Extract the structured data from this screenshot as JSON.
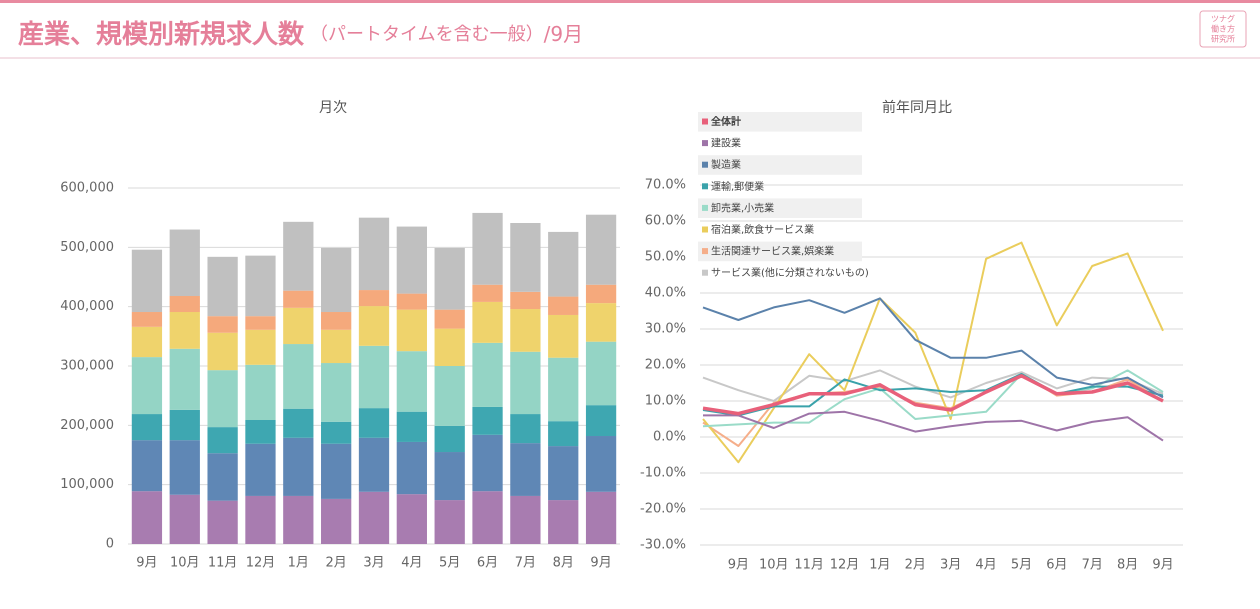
{
  "header": {
    "title": "産業、規模別新規求人数",
    "subtitle": "（パートタイムを含む一般）",
    "suffix": "/9月",
    "logo": [
      "ツナグ",
      "働き方",
      "研究所"
    ]
  },
  "chart_data": [
    {
      "type": "stacked-bar",
      "title": "月次",
      "categories": [
        "9月",
        "10月",
        "11月",
        "12月",
        "1月",
        "2月",
        "3月",
        "4月",
        "5月",
        "6月",
        "7月",
        "8月",
        "9月"
      ],
      "series": [
        {
          "color": "#a87cb0",
          "values": [
            89000,
            83000,
            73000,
            81000,
            81000,
            76000,
            88000,
            84000,
            74000,
            89000,
            81000,
            74000,
            88000
          ]
        },
        {
          "color": "#5f87b5",
          "values": [
            86000,
            92000,
            80000,
            88000,
            98000,
            93000,
            91000,
            88000,
            81000,
            95000,
            89000,
            91000,
            94000
          ]
        },
        {
          "color": "#3ea7b1",
          "values": [
            44000,
            51000,
            44000,
            40000,
            49000,
            37000,
            50000,
            51000,
            44000,
            47000,
            49000,
            42000,
            52000
          ]
        },
        {
          "color": "#94d4c5",
          "values": [
            96000,
            103000,
            96000,
            93000,
            109000,
            99000,
            105000,
            102000,
            101000,
            108000,
            105000,
            107000,
            107000
          ]
        },
        {
          "color": "#efd36c",
          "values": [
            51000,
            62000,
            63000,
            59000,
            61000,
            56000,
            67000,
            70000,
            63000,
            69000,
            72000,
            72000,
            65000
          ]
        },
        {
          "color": "#f5a97c",
          "values": [
            25000,
            27000,
            28000,
            23000,
            29000,
            30000,
            27000,
            27000,
            32000,
            29000,
            29000,
            31000,
            31000
          ]
        },
        {
          "color": "#c0c0c0",
          "values": [
            105000,
            112000,
            100000,
            102000,
            116000,
            108000,
            122000,
            113000,
            104000,
            121000,
            116000,
            109000,
            118000
          ]
        }
      ],
      "ylim": [
        0,
        600000
      ],
      "yticks": [
        0,
        {
          "value": 100000,
          "label": "100,000"
        },
        {
          "value": 200000,
          "label": "200,000"
        },
        {
          "value": 300000,
          "label": "300,000"
        },
        {
          "value": 400000,
          "label": "400,000"
        },
        {
          "value": 500000,
          "label": "500,000"
        },
        {
          "value": 600000,
          "label": "600,000"
        }
      ],
      "grid": true
    },
    {
      "type": "line",
      "title": "前年同月比",
      "categories": [
        null,
        "9月",
        "10月",
        "11月",
        "12月",
        "1月",
        "2月",
        "3月",
        "4月",
        "5月",
        "6月",
        "7月",
        "8月",
        "9月"
      ],
      "series": [
        {
          "name": "全体計",
          "color": "#e8607a",
          "values": [
            8,
            6.5,
            9,
            12,
            12,
            14.5,
            9,
            7.5,
            12.5,
            17,
            12,
            12.5,
            15,
            10
          ]
        },
        {
          "name": "建設業",
          "color": "#9e74a8",
          "values": [
            6,
            6,
            2.5,
            6.5,
            7,
            4.5,
            1.5,
            3,
            4.2,
            4.5,
            1.8,
            4.2,
            5.5,
            -1
          ]
        },
        {
          "name": "製造業",
          "color": "#5b82ab",
          "values": [
            36,
            32.5,
            36,
            38,
            34.5,
            38.5,
            27,
            22,
            22,
            24,
            16.5,
            14.5,
            16.5,
            11
          ]
        },
        {
          "name": "運輸,郵便業",
          "color": "#3aa2aa",
          "values": [
            7.5,
            6,
            8.5,
            8.5,
            16,
            13,
            13.5,
            12.5,
            13,
            17.5,
            12,
            14,
            14,
            11.5
          ]
        },
        {
          "name": "卸売業,小売業",
          "color": "#9adbc8",
          "values": [
            3,
            3.5,
            4,
            4,
            10.5,
            13.5,
            5,
            6,
            7,
            17.5,
            12,
            13.5,
            18.5,
            12.5
          ]
        },
        {
          "name": "宿泊業,飲食サービス業",
          "color": "#eacd5c",
          "values": [
            5,
            -7,
            8,
            23,
            13,
            38.5,
            29,
            5,
            49.5,
            54,
            31,
            47.5,
            51,
            29.5
          ]
        },
        {
          "name": "生活関連サービス業,娯楽業",
          "color": "#f5ae8a",
          "values": [
            4,
            -2.5,
            9.5,
            12,
            12.5,
            14,
            9.5,
            8,
            12.5,
            17.5,
            11.5,
            12.5,
            16,
            10
          ]
        },
        {
          "name": "サービス業(他に分類されないもの)",
          "color": "#c8c8c8",
          "values": [
            16.5,
            13,
            10,
            17,
            15.5,
            18.5,
            14,
            11,
            15,
            18,
            13.5,
            16.5,
            16,
            12
          ]
        }
      ],
      "ylim": [
        -30,
        70
      ],
      "yticks": [
        {
          "value": -30,
          "label": "-30.0%"
        },
        {
          "value": -20,
          "label": "-20.0%"
        },
        {
          "value": -10,
          "label": "-10.0%"
        },
        {
          "value": 0,
          "label": "0.0%"
        },
        {
          "value": 10,
          "label": "10.0%"
        },
        {
          "value": 20,
          "label": "20.0%"
        },
        {
          "value": 30,
          "label": "30.0%"
        },
        {
          "value": 40,
          "label": "40.0%"
        },
        {
          "value": 50,
          "label": "50.0%"
        },
        {
          "value": 60,
          "label": "60.0%"
        },
        {
          "value": 70,
          "label": "70.0%"
        }
      ],
      "grid": true,
      "legend": "top-left"
    }
  ]
}
